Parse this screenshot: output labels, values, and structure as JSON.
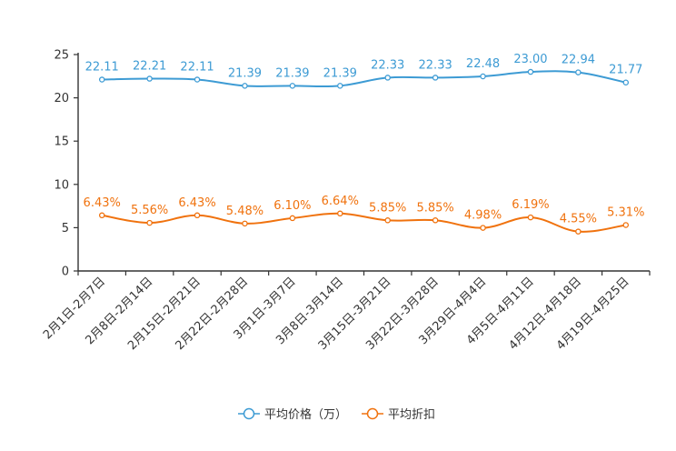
{
  "chart_data": {
    "type": "line",
    "title": "",
    "xlabel": "",
    "ylabel": "",
    "ylim": [
      0,
      25
    ],
    "yticks": [
      0,
      5,
      10,
      15,
      20,
      25
    ],
    "grid": false,
    "legend_position": "bottom-center",
    "categories": [
      "2月1日-2月7日",
      "2月8日-2月14日",
      "2月15日-2月21日",
      "2月22日-2月28日",
      "3月1日-3月7日",
      "3月8日-3月14日",
      "3月15日-3月21日",
      "3月22日-3月28日",
      "3月29日-4月4日",
      "4月5日-4月11日",
      "4月12日-4月18日",
      "4月19日-4月25日"
    ],
    "series": [
      {
        "name": "平均价格（万）",
        "color": "#3d9bd4",
        "values": [
          22.11,
          22.21,
          22.11,
          21.39,
          21.39,
          21.39,
          22.33,
          22.33,
          22.48,
          23.0,
          22.94,
          21.77
        ],
        "labels": [
          "22.11",
          "22.21",
          "22.11",
          "21.39",
          "21.39",
          "21.39",
          "22.33",
          "22.33",
          "22.48",
          "23.00",
          "22.94",
          "21.77"
        ]
      },
      {
        "name": "平均折扣",
        "color": "#f0720e",
        "values": [
          6.43,
          5.56,
          6.43,
          5.48,
          6.1,
          6.64,
          5.85,
          5.85,
          4.98,
          6.19,
          4.55,
          5.31
        ],
        "labels": [
          "6.43%",
          "5.56%",
          "6.43%",
          "5.48%",
          "6.10%",
          "6.64%",
          "5.85%",
          "5.85%",
          "4.98%",
          "6.19%",
          "4.55%",
          "5.31%"
        ]
      }
    ]
  }
}
